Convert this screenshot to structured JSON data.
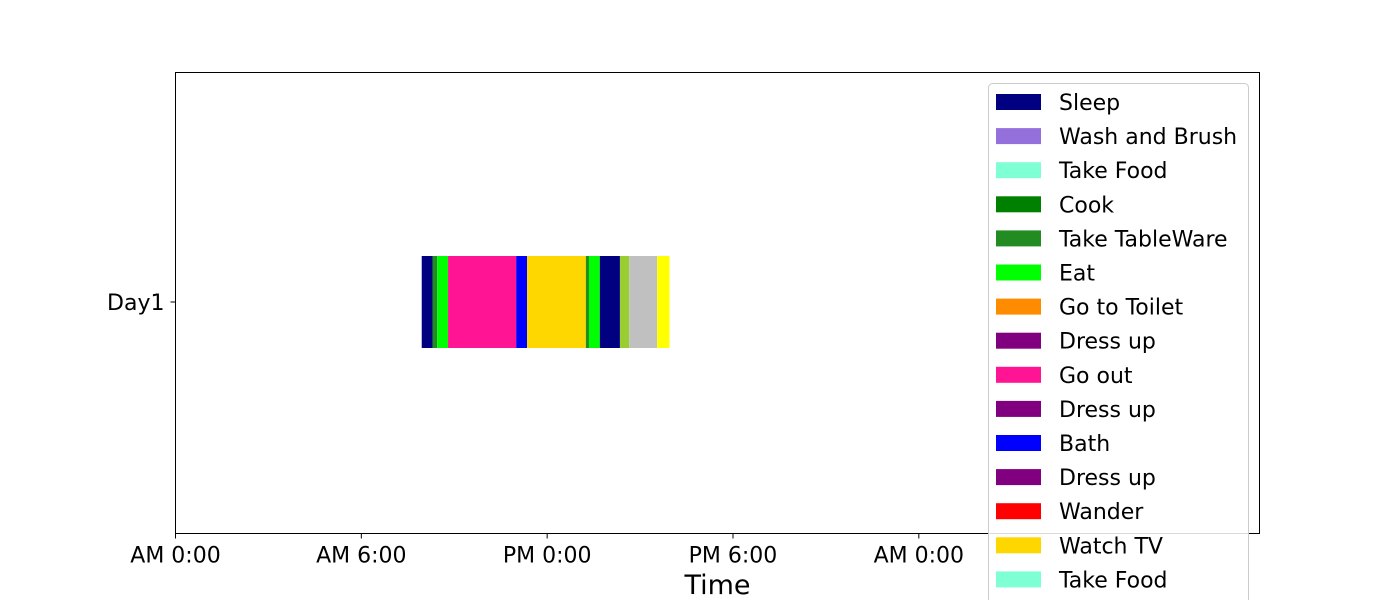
{
  "chart_data": {
    "type": "bar",
    "orientation": "horizontal-timeline",
    "title": "",
    "xlabel": "Time",
    "ylabel": "",
    "categories": [
      "Day1"
    ],
    "x_unit": "hours since AM 0:00",
    "xlim": [
      0,
      35
    ],
    "x_ticks": [
      {
        "value": 0,
        "label": "AM 0:00"
      },
      {
        "value": 6,
        "label": "AM 6:00"
      },
      {
        "value": 12,
        "label": "PM 0:00"
      },
      {
        "value": 18,
        "label": "PM 6:00"
      },
      {
        "value": 24,
        "label": "AM 0:00"
      }
    ],
    "grid": false,
    "legend_position": "top-right",
    "legend": [
      {
        "name": "Sleep",
        "color": "#000080"
      },
      {
        "name": "Wash and Brush",
        "color": "#9370DB"
      },
      {
        "name": "Take Food",
        "color": "#7FFFD4"
      },
      {
        "name": "Cook",
        "color": "#008000"
      },
      {
        "name": "Take TableWare",
        "color": "#228B22"
      },
      {
        "name": "Eat",
        "color": "#00FF00"
      },
      {
        "name": "Go to Toilet",
        "color": "#FF8C00"
      },
      {
        "name": "Dress up",
        "color": "#800080"
      },
      {
        "name": "Go out",
        "color": "#FF1493"
      },
      {
        "name": "Dress up",
        "color": "#800080"
      },
      {
        "name": "Bath",
        "color": "#0000FF"
      },
      {
        "name": "Dress up",
        "color": "#800080"
      },
      {
        "name": "Wander",
        "color": "#FF0000"
      },
      {
        "name": "Watch TV",
        "color": "#FFD700"
      },
      {
        "name": "Take Food",
        "color": "#7FFFD4"
      }
    ],
    "segments": [
      {
        "category": "Day1",
        "start": 7.95,
        "end": 8.3,
        "color": "#000080"
      },
      {
        "category": "Day1",
        "start": 8.3,
        "end": 8.45,
        "color": "#228B22"
      },
      {
        "category": "Day1",
        "start": 8.45,
        "end": 8.8,
        "color": "#00FF00"
      },
      {
        "category": "Day1",
        "start": 8.8,
        "end": 11.0,
        "color": "#FF1493"
      },
      {
        "category": "Day1",
        "start": 11.0,
        "end": 11.35,
        "color": "#0000FF"
      },
      {
        "category": "Day1",
        "start": 11.35,
        "end": 13.25,
        "color": "#FFD700"
      },
      {
        "category": "Day1",
        "start": 13.25,
        "end": 13.35,
        "color": "#228B22"
      },
      {
        "category": "Day1",
        "start": 13.35,
        "end": 13.7,
        "color": "#00FF00"
      },
      {
        "category": "Day1",
        "start": 13.7,
        "end": 14.35,
        "color": "#000080"
      },
      {
        "category": "Day1",
        "start": 14.35,
        "end": 14.65,
        "color": "#9ACD32"
      },
      {
        "category": "Day1",
        "start": 14.65,
        "end": 15.55,
        "color": "#C0C0C0"
      },
      {
        "category": "Day1",
        "start": 15.55,
        "end": 15.95,
        "color": "#FFFF00"
      }
    ]
  }
}
